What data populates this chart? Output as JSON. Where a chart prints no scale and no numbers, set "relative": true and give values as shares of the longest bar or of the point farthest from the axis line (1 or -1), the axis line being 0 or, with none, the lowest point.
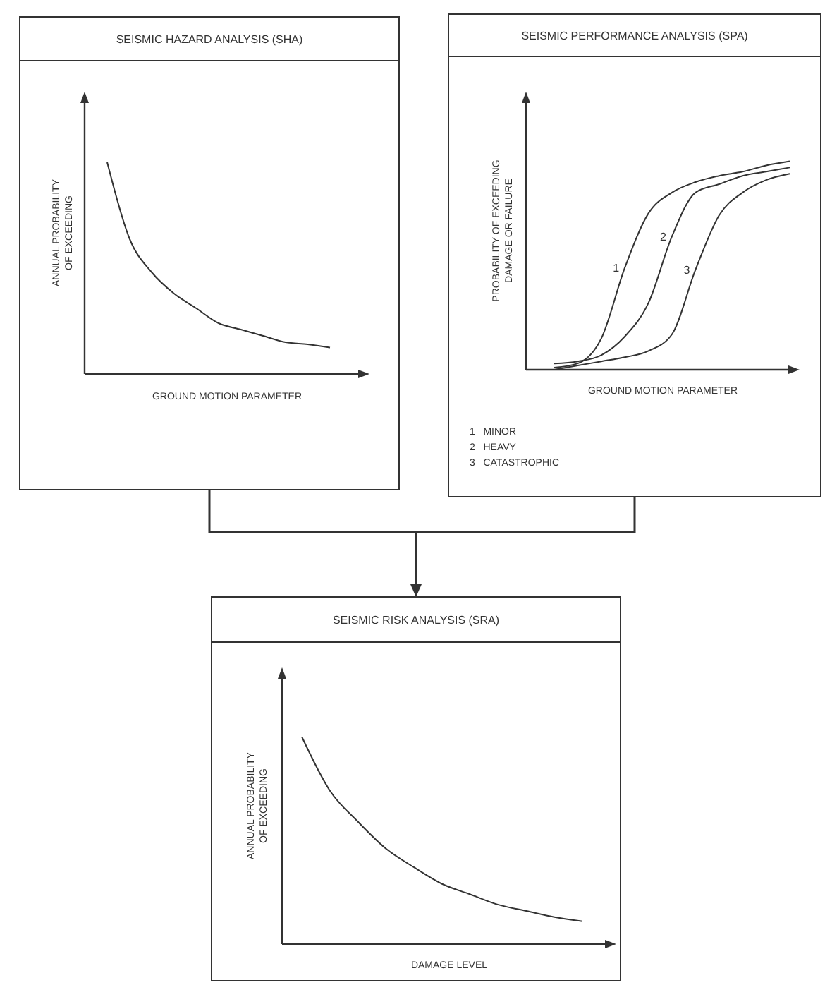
{
  "chart_data": [
    {
      "type": "line",
      "title": "SEISMIC HAZARD ANALYSIS (SHA)",
      "xlabel": "GROUND MOTION PARAMETER",
      "ylabel": "ANNUAL PROBABILITY OF EXCEEDING",
      "relative": true,
      "categories": [
        null,
        null,
        null,
        null,
        null,
        null,
        null,
        null,
        null,
        null,
        null
      ],
      "series": [
        {
          "color": "#333333",
          "values": [
            1,
            0.64,
            0.48,
            0.38,
            0.31,
            0.24,
            0.21,
            0.18,
            0.15,
            0.14,
            0.125
          ]
        }
      ]
    },
    {
      "type": "line",
      "title": "SEISMIC PERFORMANCE ANALYSIS (SPA)",
      "xlabel": "GROUND MOTION PARAMETER",
      "ylabel": "PROBABILITY OF EXCEEDING DAMAGE OR FAILURE",
      "relative": true,
      "categories": [
        null,
        null,
        null,
        null,
        null,
        null,
        null,
        null,
        null,
        null,
        null
      ],
      "series": [
        {
          "name": "1",
          "color": "#333333",
          "values": [
            0.01,
            0.03,
            0.15,
            0.49,
            0.75,
            0.85,
            0.9,
            0.93,
            0.95,
            0.98,
            1
          ]
        },
        {
          "name": "2",
          "color": "#333333",
          "values": [
            0.03,
            0.04,
            0.07,
            0.16,
            0.32,
            0.64,
            0.85,
            0.89,
            0.93,
            0.95,
            0.97
          ]
        },
        {
          "name": "3",
          "color": "#333333",
          "values": [
            0,
            0.02,
            0.04,
            0.06,
            0.09,
            0.17,
            0.48,
            0.74,
            0.85,
            0.91,
            0.94
          ]
        }
      ],
      "annotations": [
        "1   MINOR",
        "2   HEAVY",
        "3   CATASTROPHIC"
      ]
    },
    {
      "type": "line",
      "title": "SEISMIC RISK ANALYSIS (SRA)",
      "xlabel": "DAMAGE LEVEL",
      "ylabel": "ANNUAL PROBABILITY OF EXCEEDING",
      "relative": true,
      "categories": [
        null,
        null,
        null,
        null,
        null,
        null,
        null,
        null,
        null,
        null,
        null
      ],
      "series": [
        {
          "color": "#333333",
          "values": [
            1,
            0.74,
            0.59,
            0.46,
            0.37,
            0.29,
            0.24,
            0.19,
            0.16,
            0.13,
            0.11
          ]
        }
      ]
    }
  ]
}
